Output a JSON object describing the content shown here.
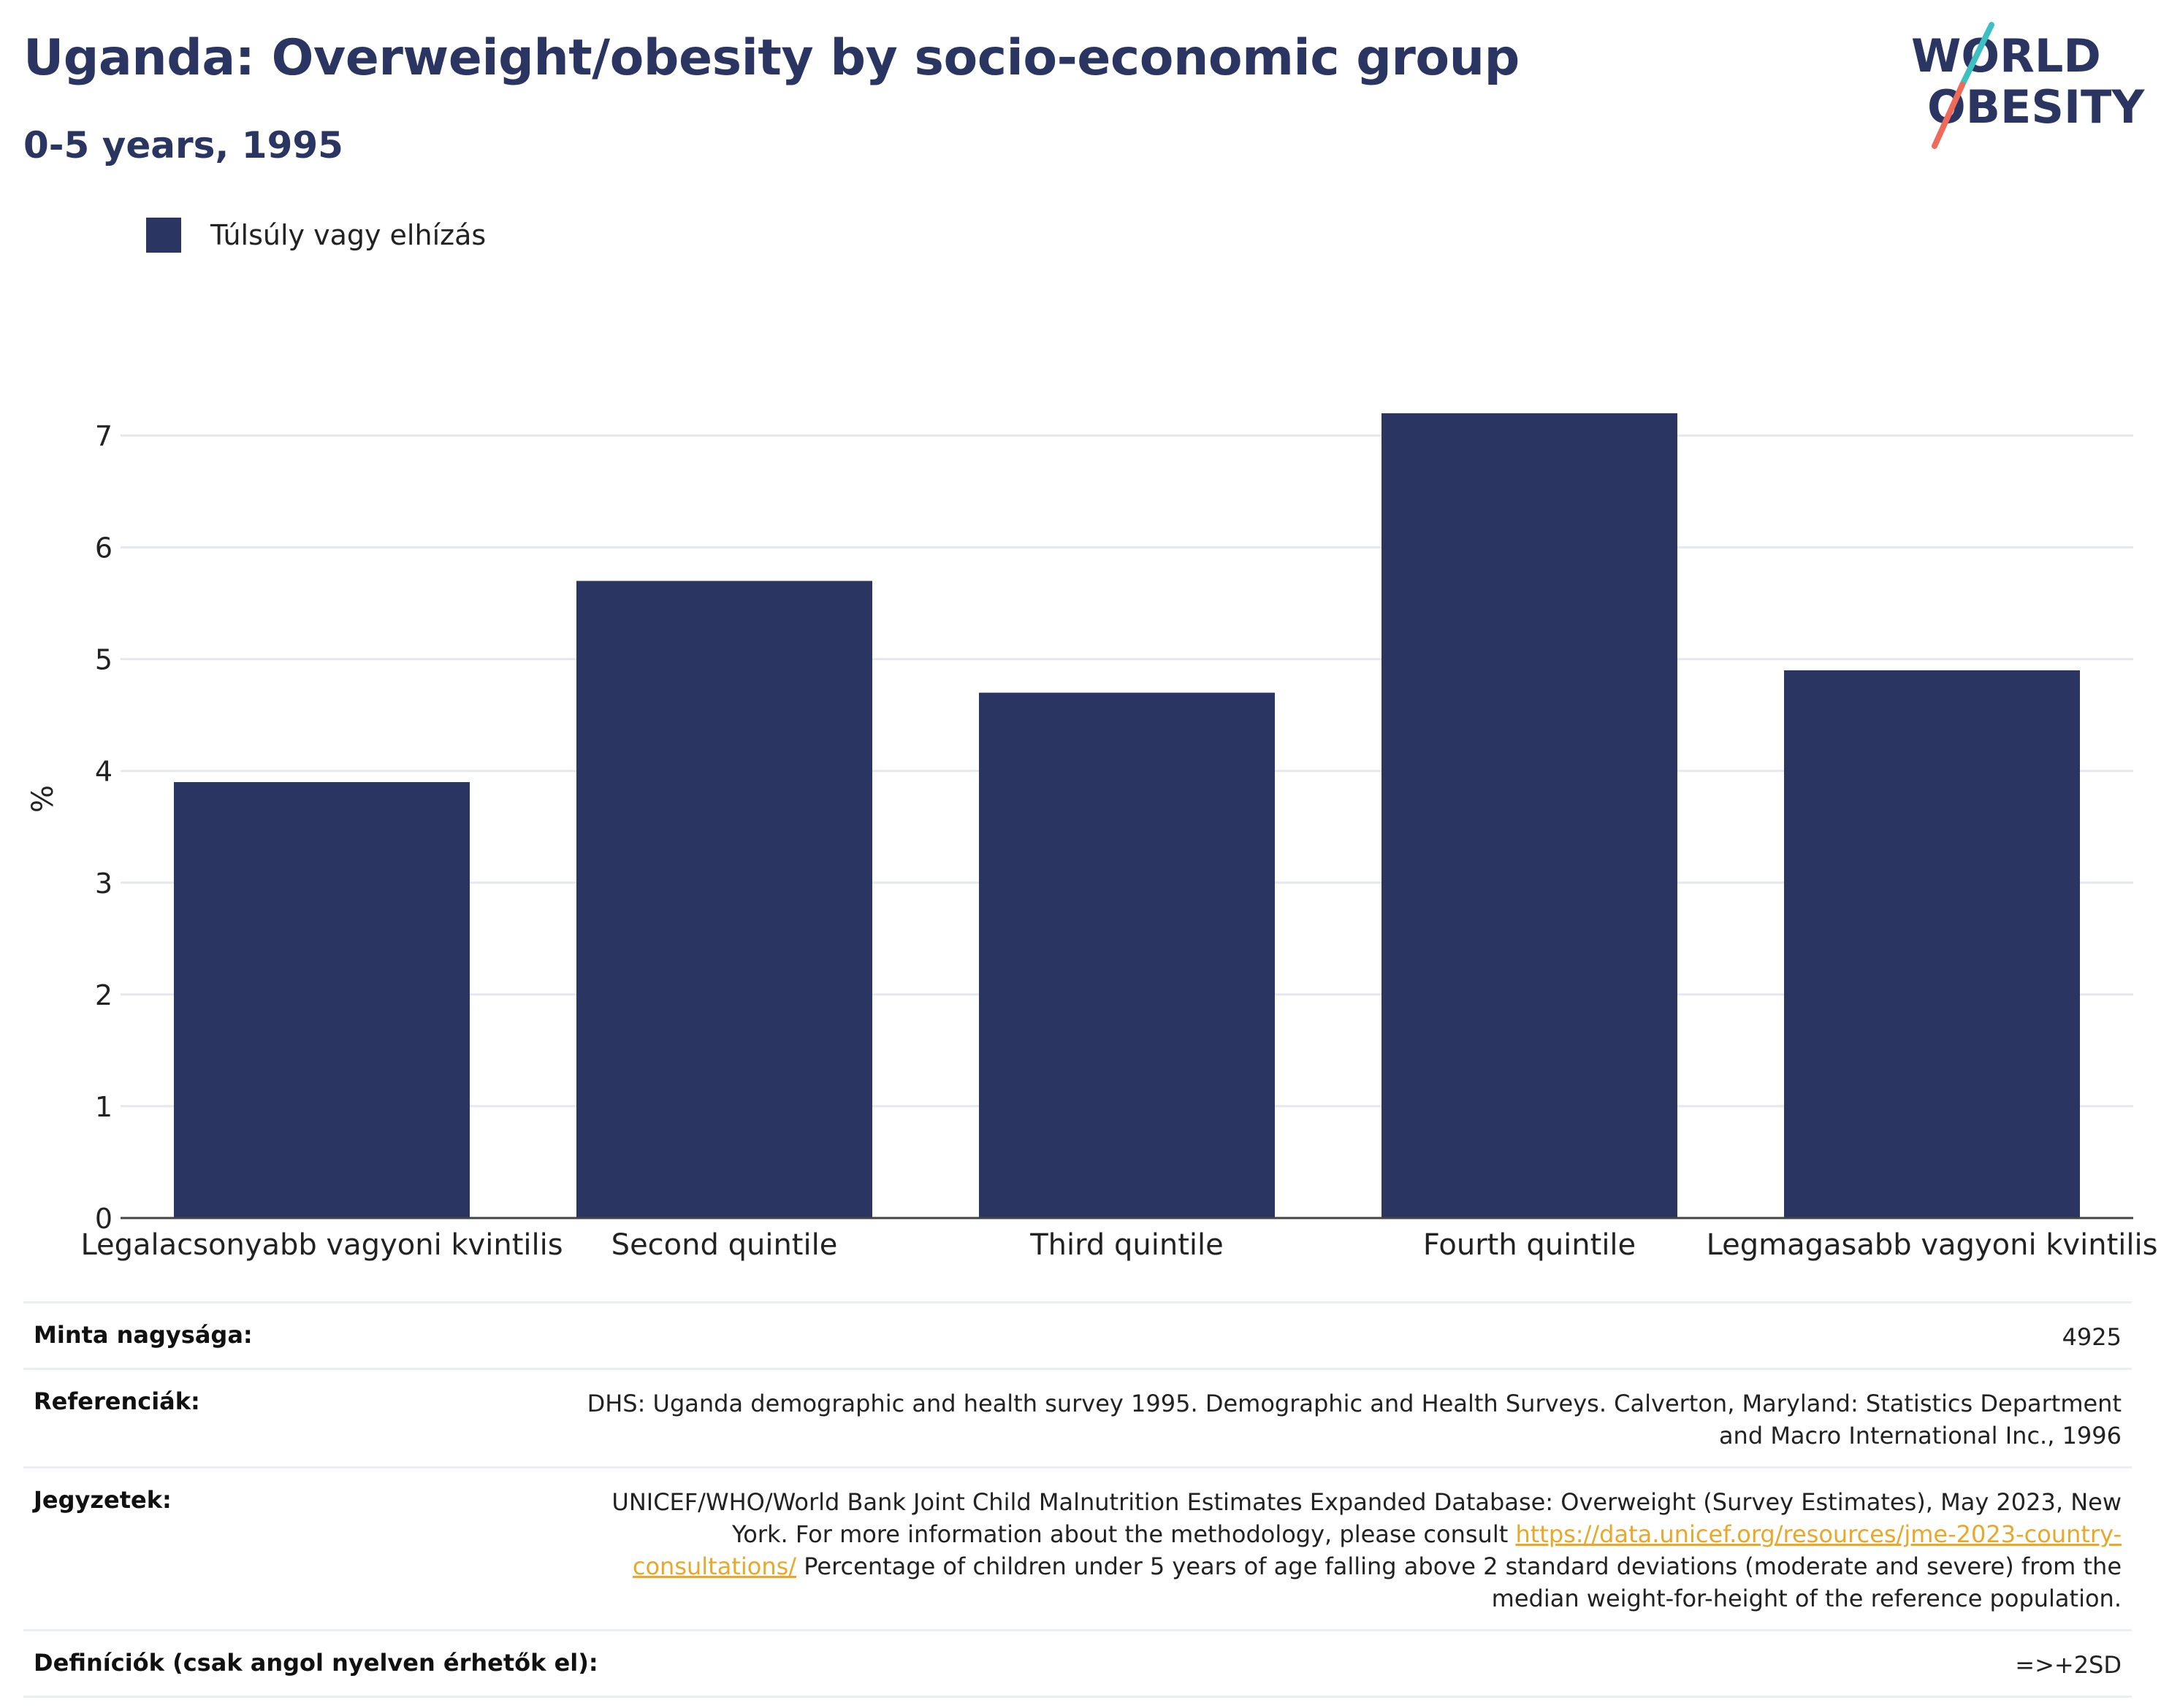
{
  "header": {
    "title": "Uganda: Overweight/obesity by socio-economic group",
    "subtitle": "0-5 years, 1995"
  },
  "logo": {
    "line1": "WORLD",
    "line2": "OBESITY",
    "accent_teal": "#3cc0c2",
    "accent_coral": "#f06a5a",
    "text_color": "#2a3561"
  },
  "legend": {
    "label": "Túlsúly vagy elhízás",
    "color": "#2a3561"
  },
  "chart_data": {
    "type": "bar",
    "categories": [
      "Legalacsonyabb vagyoni kvintilis",
      "Second quintile",
      "Third quintile",
      "Fourth quintile",
      "Legmagasabb vagyoni kvintilis"
    ],
    "series": [
      {
        "name": "Túlsúly vagy elhízás",
        "values": [
          3.9,
          5.7,
          4.7,
          7.2,
          4.9
        ],
        "color": "#2a3561"
      }
    ],
    "ylabel": "%",
    "xlabel": "",
    "ylim": [
      0,
      7.5
    ],
    "yticks": [
      0,
      1,
      2,
      3,
      4,
      5,
      6,
      7
    ],
    "grid": true,
    "legend_position": "top-left"
  },
  "info": {
    "sample_size": {
      "label": "Minta nagysága:",
      "value": "4925"
    },
    "references": {
      "label": "Referenciák:",
      "value": "DHS: Uganda demographic and health survey 1995. Demographic and Health Surveys. Calverton, Maryland: Statistics Department and Macro International Inc., 1996"
    },
    "notes": {
      "label": "Jegyzetek:",
      "text_before": "UNICEF/WHO/World Bank Joint Child Malnutrition Estimates Expanded Database: Overweight (Survey Estimates), May 2023, New York. For more information about the methodology, please consult ",
      "link": "https://data.unicef.org/resources/jme-2023-country-consultations/",
      "text_after": " Percentage of children under 5 years of age falling above 2 standard deviations (moderate and severe) from the median weight-for-height of the reference population."
    },
    "definitions": {
      "label": "Definíciók (csak angol nyelven érhetők el):",
      "value": "=>+2SD"
    }
  }
}
